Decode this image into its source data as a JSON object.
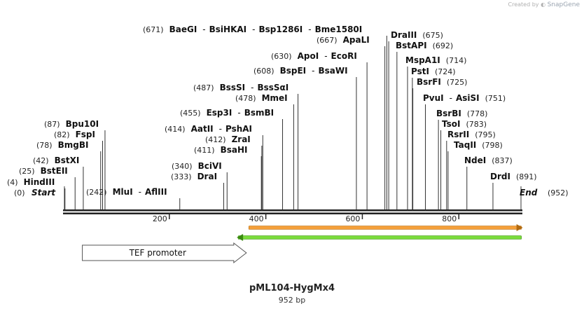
{
  "credit": {
    "prefix": "Created by",
    "brand": "SnapGene"
  },
  "plasmid": {
    "name": "pML104-HygMx4",
    "length_label": "952 bp",
    "length": 952
  },
  "ends": {
    "start": {
      "pos": "(0)",
      "label": "Start"
    },
    "end": {
      "label": "End",
      "pos": "(952)"
    }
  },
  "ruler_ticks": [
    "200",
    "400",
    "600",
    "800"
  ],
  "sites": [
    {
      "text": [
        "(4)",
        "HindIII"
      ],
      "bp": 4
    },
    {
      "text": [
        "(25)",
        "BstEII"
      ],
      "bp": 25
    },
    {
      "text": [
        "(42)",
        "BstXI"
      ],
      "bp": 42
    },
    {
      "text": [
        "(78)",
        "BmgBI"
      ],
      "bp": 78
    },
    {
      "text": [
        "(82)",
        "FspI"
      ],
      "bp": 82
    },
    {
      "text": [
        "(87)",
        "Bpu10I"
      ],
      "bp": 87
    },
    {
      "text": [
        "(242)",
        "MluI",
        "-",
        "AflIII"
      ],
      "bp": 242
    },
    {
      "text": [
        "(333)",
        "DraI"
      ],
      "bp": 333
    },
    {
      "text": [
        "(340)",
        "BciVI"
      ],
      "bp": 340
    },
    {
      "text": [
        "(411)",
        "BsaHI"
      ],
      "bp": 411
    },
    {
      "text": [
        "(412)",
        "ZraI"
      ],
      "bp": 412
    },
    {
      "text": [
        "(414)",
        "AatII",
        "-",
        "PshAI"
      ],
      "bp": 414
    },
    {
      "text": [
        "(455)",
        "Esp3I",
        "-",
        "BsmBI"
      ],
      "bp": 455
    },
    {
      "text": [
        "(478)",
        "MmeI"
      ],
      "bp": 478
    },
    {
      "text": [
        "(487)",
        "BssSI",
        "-",
        "BssSαI"
      ],
      "bp": 487
    },
    {
      "text": [
        "(608)",
        "BspEI",
        "-",
        "BsaWI"
      ],
      "bp": 608
    },
    {
      "text": [
        "(630)",
        "ApoI",
        "-",
        "EcoRI"
      ],
      "bp": 630
    },
    {
      "text": [
        "(667)",
        "ApaLI"
      ],
      "bp": 667
    },
    {
      "text": [
        "(671)",
        "BaeGI",
        "-",
        "BsiHKAI",
        "-",
        "Bsp1286I",
        "-",
        "Bme1580I"
      ],
      "bp": 671
    },
    {
      "text": [
        "DraIII",
        "(675)"
      ],
      "bp": 675
    },
    {
      "text": [
        "BstAPI",
        "(692)"
      ],
      "bp": 692
    },
    {
      "text": [
        "MspA1I",
        "(714)"
      ],
      "bp": 714
    },
    {
      "text": [
        "PstI",
        "(724)"
      ],
      "bp": 724
    },
    {
      "text": [
        "BsrFI",
        "(725)"
      ],
      "bp": 725
    },
    {
      "text": [
        "PvuI",
        "-",
        "AsiSI",
        "(751)"
      ],
      "bp": 751
    },
    {
      "text": [
        "BsrBI",
        "(778)"
      ],
      "bp": 778
    },
    {
      "text": [
        "TsoI",
        "(783)"
      ],
      "bp": 783
    },
    {
      "text": [
        "RsrII",
        "(795)"
      ],
      "bp": 795
    },
    {
      "text": [
        "TaqII",
        "(798)"
      ],
      "bp": 798
    },
    {
      "text": [
        "NdeI",
        "(837)"
      ],
      "bp": 837
    },
    {
      "text": [
        "DrdI",
        "(891)"
      ],
      "bp": 891
    }
  ],
  "features": [
    {
      "label": "TEF promoter",
      "direction": "forward",
      "start": 40,
      "end": 380,
      "color": "#ffffff",
      "edge": "#555555"
    },
    {
      "label": "",
      "direction": "forward",
      "start": 385,
      "end": 950,
      "color": "#f5a03a",
      "edge": "#b06a10"
    },
    {
      "label": "",
      "direction": "reverse",
      "start": 363,
      "end": 950,
      "color": "#7bdc3c",
      "edge": "#3a8a10"
    }
  ],
  "colors": {
    "text": "#111111",
    "pos": "#222222",
    "line": "#333333"
  }
}
